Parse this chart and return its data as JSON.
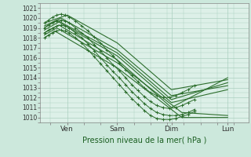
{
  "title": "Pression niveau de la mer( hPa )",
  "bg_color": "#cce8dc",
  "plot_bg_color": "#ddf0e8",
  "grid_color": "#aacfbf",
  "line_color": "#2d6e2d",
  "ylim": [
    1009.5,
    1021.5
  ],
  "yticks": [
    1010,
    1011,
    1012,
    1013,
    1014,
    1015,
    1016,
    1017,
    1018,
    1019,
    1020,
    1021
  ],
  "xtick_labels": [
    "Ven",
    "Sam",
    "Dim",
    "Lun"
  ],
  "xtick_positions": [
    0.13,
    0.37,
    0.63,
    0.9
  ],
  "series": [
    {
      "x": [
        0.02,
        0.13,
        0.37,
        0.63,
        0.9
      ],
      "y": [
        1019.5,
        1020.3,
        1017.5,
        1012.8,
        1013.8
      ]
    },
    {
      "x": [
        0.02,
        0.1,
        0.37,
        0.63,
        0.9
      ],
      "y": [
        1019.2,
        1020.0,
        1016.8,
        1012.2,
        1013.2
      ]
    },
    {
      "x": [
        0.02,
        0.09,
        0.37,
        0.63,
        0.9
      ],
      "y": [
        1018.8,
        1019.6,
        1016.2,
        1011.5,
        1012.8
      ]
    },
    {
      "x": [
        0.02,
        0.09,
        0.37,
        0.63,
        0.9
      ],
      "y": [
        1018.5,
        1019.3,
        1015.8,
        1011.0,
        1014.0
      ]
    },
    {
      "x": [
        0.02,
        0.08,
        0.37,
        0.63,
        0.9
      ],
      "y": [
        1019.0,
        1019.8,
        1016.5,
        1011.8,
        1013.5
      ]
    },
    {
      "x": [
        0.02,
        0.08,
        0.37,
        0.68,
        0.9
      ],
      "y": [
        1018.3,
        1019.0,
        1015.5,
        1010.5,
        1010.2
      ]
    },
    {
      "x": [
        0.02,
        0.07,
        0.37,
        0.68,
        0.9
      ],
      "y": [
        1018.0,
        1018.7,
        1015.0,
        1010.0,
        1010.0
      ]
    }
  ],
  "detail_series": [
    {
      "x": [
        0.02,
        0.04,
        0.06,
        0.08,
        0.1,
        0.12,
        0.14,
        0.17,
        0.2,
        0.23,
        0.26,
        0.29,
        0.32,
        0.35,
        0.38,
        0.41,
        0.44,
        0.47,
        0.5,
        0.53,
        0.56,
        0.59,
        0.62,
        0.65,
        0.68,
        0.71,
        0.74
      ],
      "y": [
        1019.5,
        1019.8,
        1020.1,
        1020.3,
        1020.4,
        1020.3,
        1020.1,
        1019.7,
        1019.2,
        1018.7,
        1018.1,
        1017.5,
        1016.8,
        1016.2,
        1015.5,
        1014.8,
        1014.2,
        1013.6,
        1013.0,
        1012.5,
        1012.2,
        1012.0,
        1012.0,
        1012.2,
        1012.5,
        1012.8,
        1013.2
      ]
    },
    {
      "x": [
        0.02,
        0.04,
        0.06,
        0.08,
        0.1,
        0.12,
        0.14,
        0.17,
        0.2,
        0.23,
        0.26,
        0.29,
        0.32,
        0.35,
        0.38,
        0.41,
        0.44,
        0.47,
        0.5,
        0.53,
        0.56,
        0.59,
        0.62,
        0.65,
        0.68,
        0.71,
        0.74
      ],
      "y": [
        1019.0,
        1019.3,
        1019.5,
        1019.7,
        1019.8,
        1019.7,
        1019.5,
        1019.0,
        1018.5,
        1018.0,
        1017.3,
        1016.7,
        1016.0,
        1015.3,
        1014.7,
        1014.0,
        1013.3,
        1012.7,
        1012.1,
        1011.6,
        1011.2,
        1011.0,
        1010.9,
        1011.0,
        1011.2,
        1011.5,
        1011.8
      ]
    },
    {
      "x": [
        0.02,
        0.04,
        0.06,
        0.08,
        0.1,
        0.12,
        0.14,
        0.17,
        0.2,
        0.23,
        0.26,
        0.29,
        0.32,
        0.35,
        0.38,
        0.41,
        0.44,
        0.47,
        0.5,
        0.53,
        0.56,
        0.59,
        0.62,
        0.65,
        0.68,
        0.71,
        0.74
      ],
      "y": [
        1018.5,
        1018.8,
        1019.0,
        1019.2,
        1019.3,
        1019.2,
        1019.0,
        1018.5,
        1018.0,
        1017.4,
        1016.7,
        1016.0,
        1015.3,
        1014.6,
        1014.0,
        1013.3,
        1012.6,
        1012.0,
        1011.4,
        1010.9,
        1010.5,
        1010.3,
        1010.2,
        1010.2,
        1010.3,
        1010.5,
        1010.8
      ]
    },
    {
      "x": [
        0.02,
        0.04,
        0.06,
        0.08,
        0.1,
        0.12,
        0.14,
        0.17,
        0.2,
        0.23,
        0.26,
        0.29,
        0.32,
        0.35,
        0.38,
        0.41,
        0.44,
        0.47,
        0.5,
        0.53,
        0.56,
        0.59,
        0.62,
        0.65,
        0.68,
        0.71,
        0.74
      ],
      "y": [
        1018.0,
        1018.3,
        1018.5,
        1018.7,
        1018.8,
        1018.7,
        1018.5,
        1018.0,
        1017.5,
        1016.8,
        1016.1,
        1015.4,
        1014.7,
        1014.0,
        1013.3,
        1012.6,
        1011.9,
        1011.3,
        1010.7,
        1010.2,
        1009.9,
        1009.8,
        1009.8,
        1009.9,
        1010.1,
        1010.3,
        1010.6
      ]
    }
  ]
}
